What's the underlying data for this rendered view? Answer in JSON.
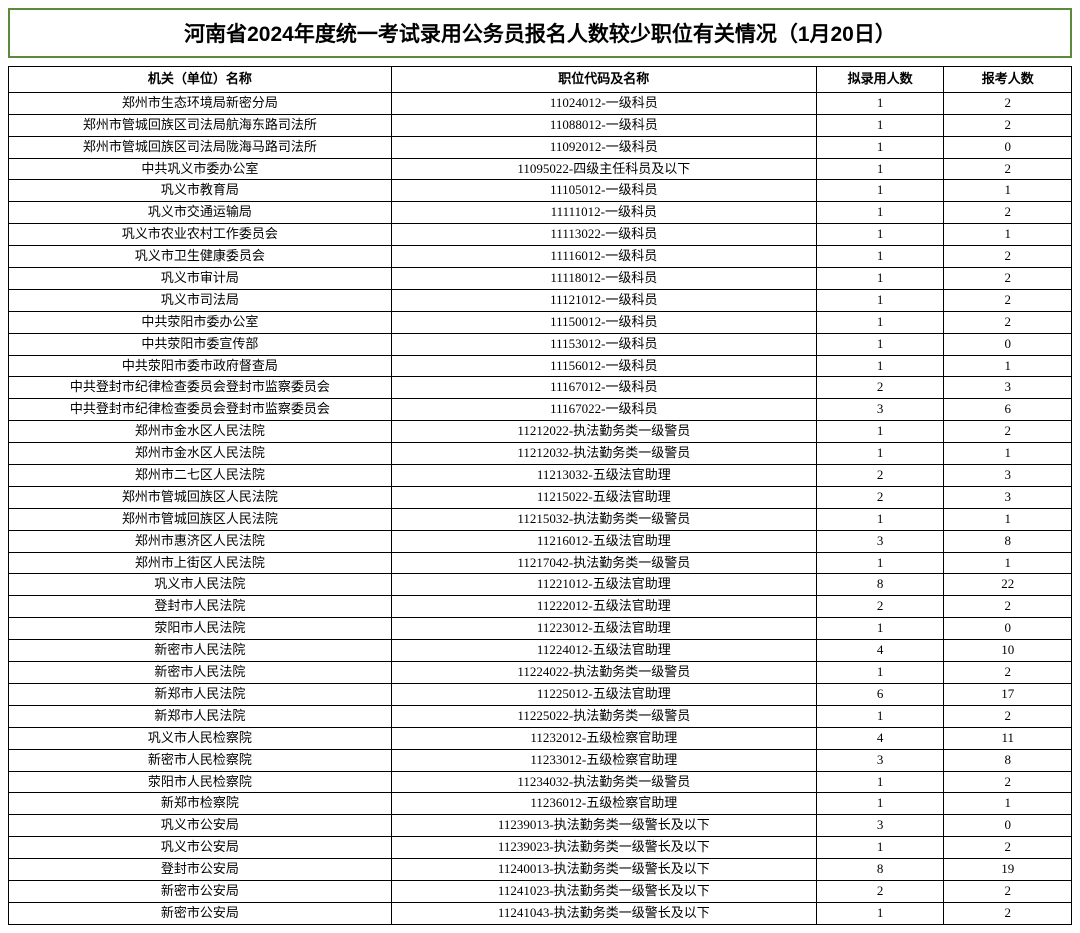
{
  "title": "河南省2024年度统一考试录用公务员报名人数较少职位有关情况（1月20日）",
  "headers": {
    "org": "机关（单位）名称",
    "position": "职位代码及名称",
    "plan": "拟录用人数",
    "applicants": "报考人数"
  },
  "style": {
    "title_border_color": "#5a8a3a",
    "cell_border_color": "#000000",
    "title_fontsize": 21,
    "cell_fontsize": 13
  },
  "rows": [
    {
      "org": "郑州市生态环境局新密分局",
      "pos": "11024012-一级科员",
      "plan": "1",
      "apply": "2"
    },
    {
      "org": "郑州市管城回族区司法局航海东路司法所",
      "pos": "11088012-一级科员",
      "plan": "1",
      "apply": "2"
    },
    {
      "org": "郑州市管城回族区司法局陇海马路司法所",
      "pos": "11092012-一级科员",
      "plan": "1",
      "apply": "0"
    },
    {
      "org": "中共巩义市委办公室",
      "pos": "11095022-四级主任科员及以下",
      "plan": "1",
      "apply": "2"
    },
    {
      "org": "巩义市教育局",
      "pos": "11105012-一级科员",
      "plan": "1",
      "apply": "1"
    },
    {
      "org": "巩义市交通运输局",
      "pos": "11111012-一级科员",
      "plan": "1",
      "apply": "2"
    },
    {
      "org": "巩义市农业农村工作委员会",
      "pos": "11113022-一级科员",
      "plan": "1",
      "apply": "1"
    },
    {
      "org": "巩义市卫生健康委员会",
      "pos": "11116012-一级科员",
      "plan": "1",
      "apply": "2"
    },
    {
      "org": "巩义市审计局",
      "pos": "11118012-一级科员",
      "plan": "1",
      "apply": "2"
    },
    {
      "org": "巩义市司法局",
      "pos": "11121012-一级科员",
      "plan": "1",
      "apply": "2"
    },
    {
      "org": "中共荥阳市委办公室",
      "pos": "11150012-一级科员",
      "plan": "1",
      "apply": "2"
    },
    {
      "org": "中共荥阳市委宣传部",
      "pos": "11153012-一级科员",
      "plan": "1",
      "apply": "0"
    },
    {
      "org": "中共荥阳市委市政府督查局",
      "pos": "11156012-一级科员",
      "plan": "1",
      "apply": "1"
    },
    {
      "org": "中共登封市纪律检查委员会登封市监察委员会",
      "pos": "11167012-一级科员",
      "plan": "2",
      "apply": "3"
    },
    {
      "org": "中共登封市纪律检查委员会登封市监察委员会",
      "pos": "11167022-一级科员",
      "plan": "3",
      "apply": "6"
    },
    {
      "org": "郑州市金水区人民法院",
      "pos": "11212022-执法勤务类一级警员",
      "plan": "1",
      "apply": "2"
    },
    {
      "org": "郑州市金水区人民法院",
      "pos": "11212032-执法勤务类一级警员",
      "plan": "1",
      "apply": "1"
    },
    {
      "org": "郑州市二七区人民法院",
      "pos": "11213032-五级法官助理",
      "plan": "2",
      "apply": "3"
    },
    {
      "org": "郑州市管城回族区人民法院",
      "pos": "11215022-五级法官助理",
      "plan": "2",
      "apply": "3"
    },
    {
      "org": "郑州市管城回族区人民法院",
      "pos": "11215032-执法勤务类一级警员",
      "plan": "1",
      "apply": "1"
    },
    {
      "org": "郑州市惠济区人民法院",
      "pos": "11216012-五级法官助理",
      "plan": "3",
      "apply": "8"
    },
    {
      "org": "郑州市上街区人民法院",
      "pos": "11217042-执法勤务类一级警员",
      "plan": "1",
      "apply": "1"
    },
    {
      "org": "巩义市人民法院",
      "pos": "11221012-五级法官助理",
      "plan": "8",
      "apply": "22"
    },
    {
      "org": "登封市人民法院",
      "pos": "11222012-五级法官助理",
      "plan": "2",
      "apply": "2"
    },
    {
      "org": "荥阳市人民法院",
      "pos": "11223012-五级法官助理",
      "plan": "1",
      "apply": "0"
    },
    {
      "org": "新密市人民法院",
      "pos": "11224012-五级法官助理",
      "plan": "4",
      "apply": "10"
    },
    {
      "org": "新密市人民法院",
      "pos": "11224022-执法勤务类一级警员",
      "plan": "1",
      "apply": "2"
    },
    {
      "org": "新郑市人民法院",
      "pos": "11225012-五级法官助理",
      "plan": "6",
      "apply": "17"
    },
    {
      "org": "新郑市人民法院",
      "pos": "11225022-执法勤务类一级警员",
      "plan": "1",
      "apply": "2"
    },
    {
      "org": "巩义市人民检察院",
      "pos": "11232012-五级检察官助理",
      "plan": "4",
      "apply": "11"
    },
    {
      "org": "新密市人民检察院",
      "pos": "11233012-五级检察官助理",
      "plan": "3",
      "apply": "8"
    },
    {
      "org": "荥阳市人民检察院",
      "pos": "11234032-执法勤务类一级警员",
      "plan": "1",
      "apply": "2"
    },
    {
      "org": "新郑市检察院",
      "pos": "11236012-五级检察官助理",
      "plan": "1",
      "apply": "1"
    },
    {
      "org": "巩义市公安局",
      "pos": "11239013-执法勤务类一级警长及以下",
      "plan": "3",
      "apply": "0"
    },
    {
      "org": "巩义市公安局",
      "pos": "11239023-执法勤务类一级警长及以下",
      "plan": "1",
      "apply": "2"
    },
    {
      "org": "登封市公安局",
      "pos": "11240013-执法勤务类一级警长及以下",
      "plan": "8",
      "apply": "19"
    },
    {
      "org": "新密市公安局",
      "pos": "11241023-执法勤务类一级警长及以下",
      "plan": "2",
      "apply": "2"
    },
    {
      "org": "新密市公安局",
      "pos": "11241043-执法勤务类一级警长及以下",
      "plan": "1",
      "apply": "2"
    }
  ]
}
